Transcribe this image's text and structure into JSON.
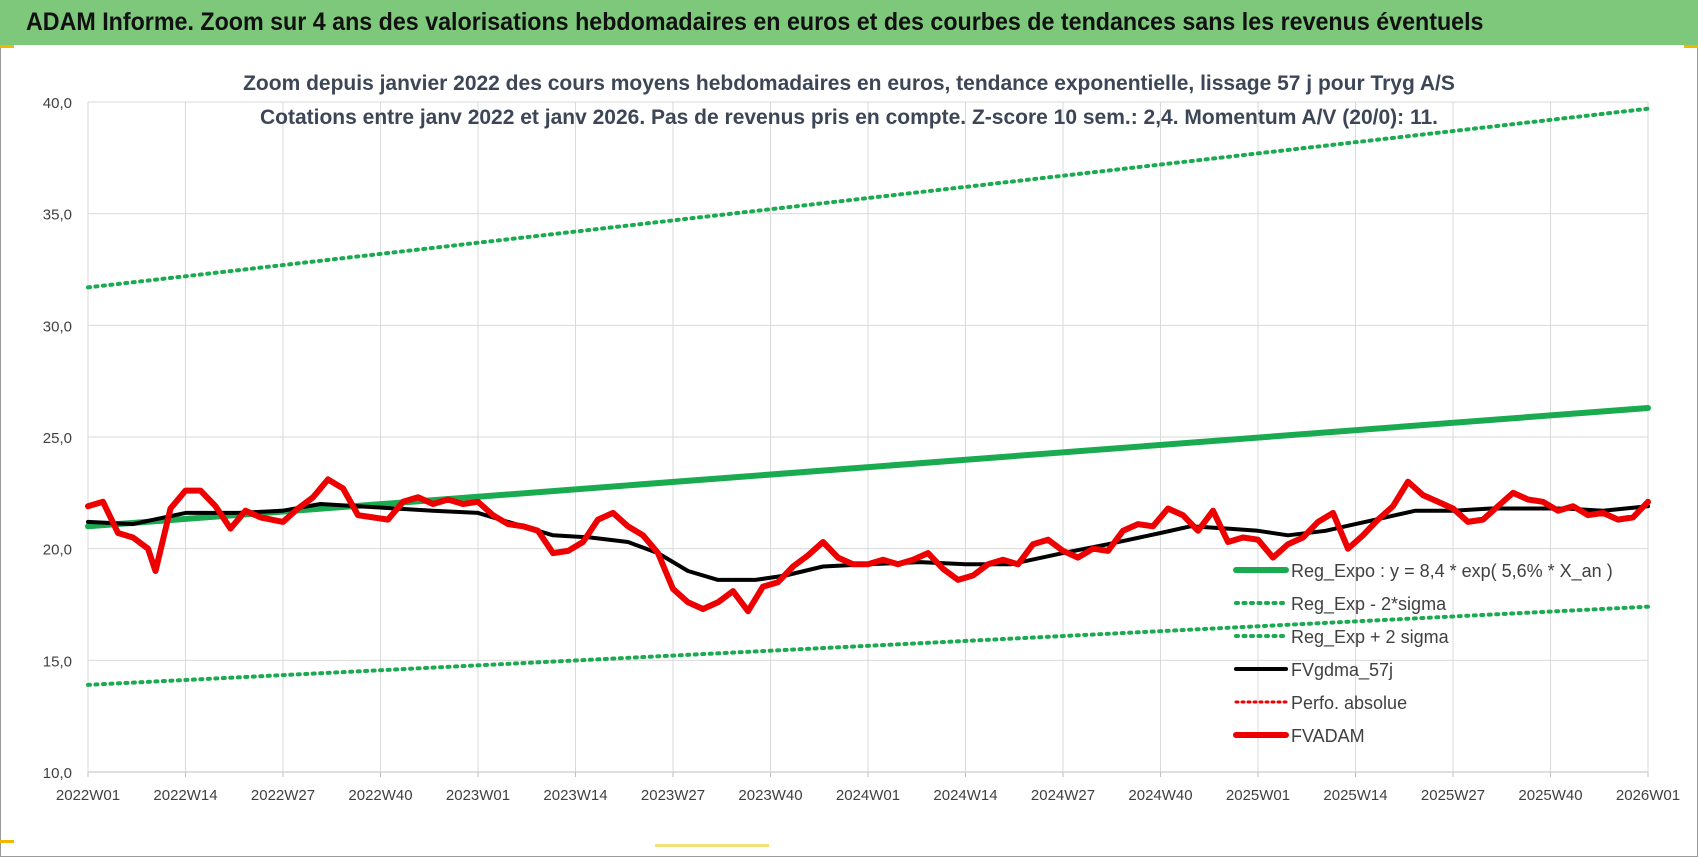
{
  "header": {
    "title": "ADAM Informe. Zoom sur 4 ans des valorisations hebdomadaires en euros et des courbes de tendances sans les revenus éventuels"
  },
  "chart_data": {
    "type": "line",
    "title": "Zoom depuis janvier 2022 des cours moyens hebdomadaires en euros, tendance exponentielle, lissage 57 j pour Tryg A/S",
    "subtitle": "Cotations entre janv 2022 et janv 2026. Pas de revenus pris en compte. Z-score 10 sem.: 2,4. Momentum A/V (20/0): 11.",
    "xlabel": "",
    "ylabel": "",
    "ylim": [
      10,
      40
    ],
    "yticks": [
      "10,0",
      "15,0",
      "20,0",
      "25,0",
      "30,0",
      "35,0",
      "40,0"
    ],
    "xticks": [
      "2022W01",
      "2022W14",
      "2022W27",
      "2022W40",
      "2023W01",
      "2023W14",
      "2023W27",
      "2023W40",
      "2024W01",
      "2024W14",
      "2024W27",
      "2024W40",
      "2025W01",
      "2025W14",
      "2025W27",
      "2025W40",
      "2026W01"
    ],
    "grid": true,
    "legend_position": "bottom-right",
    "colors": {
      "green": "#1aaa50",
      "black": "#000000",
      "red": "#ee0000",
      "header": "#7dc87b"
    },
    "series": [
      {
        "name": "Reg_Expo : y = 8,4 * exp( 5,6% *  X_an )",
        "style": "solid-green",
        "x": [
          "2022W01",
          "2026W01"
        ],
        "values": [
          21.0,
          26.3
        ]
      },
      {
        "name": "Reg_Exp - 2*sigma",
        "style": "dotted-green",
        "x": [
          "2022W01",
          "2026W01"
        ],
        "values": [
          13.9,
          17.4
        ]
      },
      {
        "name": "Reg_Exp + 2 sigma",
        "style": "dotted-green",
        "x": [
          "2022W01",
          "2026W01"
        ],
        "values": [
          31.7,
          39.7
        ]
      },
      {
        "name": "FVgdma_57j",
        "style": "solid-black",
        "x": [
          "2022W01",
          "2022W07",
          "2022W14",
          "2022W21",
          "2022W27",
          "2022W32",
          "2022W37",
          "2022W42",
          "2022W47",
          "2023W01",
          "2023W06",
          "2023W11",
          "2023W16",
          "2023W21",
          "2023W25",
          "2023W29",
          "2023W33",
          "2023W38",
          "2023W42",
          "2023W47",
          "2024W01",
          "2024W08",
          "2024W14",
          "2024W20",
          "2024W27",
          "2024W33",
          "2024W40",
          "2024W44",
          "2024W49",
          "2025W01",
          "2025W05",
          "2025W10",
          "2025W14",
          "2025W18",
          "2025W22",
          "2025W27",
          "2025W32",
          "2025W37",
          "2025W42",
          "2025W47",
          "2026W01"
        ],
        "values": [
          21.2,
          21.1,
          21.6,
          21.6,
          21.7,
          22.0,
          21.9,
          21.8,
          21.7,
          21.6,
          21.1,
          20.6,
          20.5,
          20.3,
          19.8,
          19.0,
          18.6,
          18.6,
          18.8,
          19.2,
          19.3,
          19.4,
          19.3,
          19.3,
          19.8,
          20.2,
          20.7,
          21.0,
          20.9,
          20.8,
          20.6,
          20.8,
          21.1,
          21.4,
          21.7,
          21.7,
          21.8,
          21.8,
          21.8,
          21.7,
          21.9
        ]
      },
      {
        "name": "Perfo. absolue",
        "style": "dotted-red",
        "x": [],
        "values": []
      },
      {
        "name": "FVADAM",
        "style": "solid-red-thick",
        "x": [
          "2022W01",
          "2022W03",
          "2022W05",
          "2022W07",
          "2022W09",
          "2022W10",
          "2022W12",
          "2022W14",
          "2022W16",
          "2022W18",
          "2022W20",
          "2022W22",
          "2022W24",
          "2022W27",
          "2022W29",
          "2022W31",
          "2022W33",
          "2022W35",
          "2022W37",
          "2022W39",
          "2022W41",
          "2022W43",
          "2022W45",
          "2022W47",
          "2022W49",
          "2022W51",
          "2023W01",
          "2023W03",
          "2023W05",
          "2023W07",
          "2023W09",
          "2023W11",
          "2023W13",
          "2023W15",
          "2023W17",
          "2023W19",
          "2023W21",
          "2023W23",
          "2023W25",
          "2023W27",
          "2023W29",
          "2023W31",
          "2023W33",
          "2023W35",
          "2023W37",
          "2023W39",
          "2023W41",
          "2023W43",
          "2023W45",
          "2023W47",
          "2023W49",
          "2023W51",
          "2024W01",
          "2024W03",
          "2024W05",
          "2024W07",
          "2024W09",
          "2024W11",
          "2024W13",
          "2024W15",
          "2024W17",
          "2024W19",
          "2024W21",
          "2024W23",
          "2024W25",
          "2024W27",
          "2024W29",
          "2024W31",
          "2024W33",
          "2024W35",
          "2024W37",
          "2024W39",
          "2024W41",
          "2024W43",
          "2024W45",
          "2024W47",
          "2024W49",
          "2024W51",
          "2025W01",
          "2025W03",
          "2025W05",
          "2025W07",
          "2025W09",
          "2025W11",
          "2025W13",
          "2025W15",
          "2025W17",
          "2025W19",
          "2025W21",
          "2025W23",
          "2025W25",
          "2025W27",
          "2025W29",
          "2025W31",
          "2025W33",
          "2025W35",
          "2025W37",
          "2025W39",
          "2025W41",
          "2025W43",
          "2025W45",
          "2025W47",
          "2025W49",
          "2025W51",
          "2026W01"
        ],
        "values": [
          21.9,
          22.1,
          20.7,
          20.5,
          20.0,
          19.0,
          21.8,
          22.6,
          22.6,
          21.9,
          20.9,
          21.7,
          21.4,
          21.2,
          21.8,
          22.3,
          23.1,
          22.7,
          21.5,
          21.4,
          21.3,
          22.1,
          22.3,
          22.0,
          22.2,
          22.0,
          22.1,
          21.5,
          21.1,
          21.0,
          20.8,
          19.8,
          19.9,
          20.3,
          21.3,
          21.6,
          21.0,
          20.6,
          19.8,
          18.2,
          17.6,
          17.3,
          17.6,
          18.1,
          17.2,
          18.3,
          18.5,
          19.2,
          19.7,
          20.3,
          19.6,
          19.3,
          19.3,
          19.5,
          19.3,
          19.5,
          19.8,
          19.1,
          18.6,
          18.8,
          19.3,
          19.5,
          19.3,
          20.2,
          20.4,
          19.9,
          19.6,
          20.0,
          19.9,
          20.8,
          21.1,
          21.0,
          21.8,
          21.5,
          20.8,
          21.7,
          20.3,
          20.5,
          20.4,
          19.6,
          20.2,
          20.5,
          21.2,
          21.6,
          20.0,
          20.6,
          21.3,
          21.9,
          23.0,
          22.4,
          22.1,
          21.8,
          21.2,
          21.3,
          21.9,
          22.5,
          22.2,
          22.1,
          21.7,
          21.9,
          21.5,
          21.6,
          21.3,
          21.4,
          22.1
        ]
      }
    ]
  }
}
